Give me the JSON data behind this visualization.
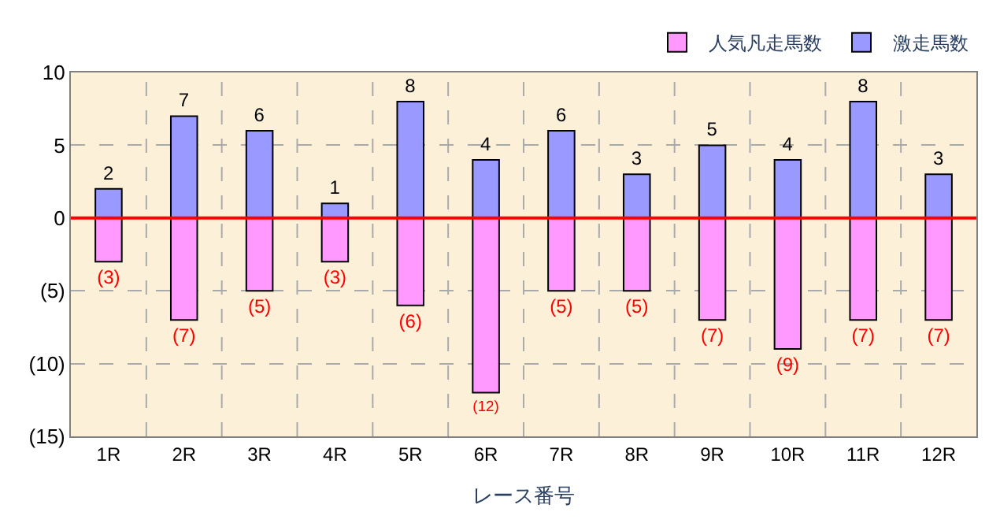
{
  "chart_data": {
    "type": "bar",
    "stacked": true,
    "xlabel": "レース番号",
    "categories": [
      "1R",
      "2R",
      "3R",
      "4R",
      "5R",
      "6R",
      "7R",
      "8R",
      "9R",
      "10R",
      "11R",
      "12R"
    ],
    "series": [
      {
        "name": "人気凡走馬数",
        "color": "#ff99ff",
        "values": [
          -3,
          -7,
          -5,
          -3,
          -6,
          -12,
          -5,
          -5,
          -7,
          -9,
          -7,
          -7
        ],
        "value_labels": [
          "(3)",
          "(7)",
          "(5)",
          "(3)",
          "(6)",
          "(12)",
          "(5)",
          "(5)",
          "(7)",
          "(9)",
          "(7)",
          "(7)"
        ]
      },
      {
        "name": "激走馬数",
        "color": "#9999ff",
        "values": [
          2,
          7,
          6,
          1,
          8,
          4,
          6,
          3,
          5,
          4,
          8,
          3
        ],
        "value_labels": [
          "2",
          "7",
          "6",
          "1",
          "8",
          "4",
          "6",
          "3",
          "5",
          "4",
          "8",
          "3"
        ]
      }
    ],
    "ylim": [
      -15,
      10
    ],
    "yticks": [
      10,
      5,
      0,
      {
        "value": -5,
        "label": "(5)"
      },
      {
        "value": -10,
        "label": "(10)"
      },
      {
        "value": -15,
        "label": "(15)"
      }
    ],
    "ref_lines": [
      {
        "axis": "y",
        "value": 0,
        "color": "#ff0000"
      }
    ],
    "grid": true,
    "legend": "top right"
  }
}
